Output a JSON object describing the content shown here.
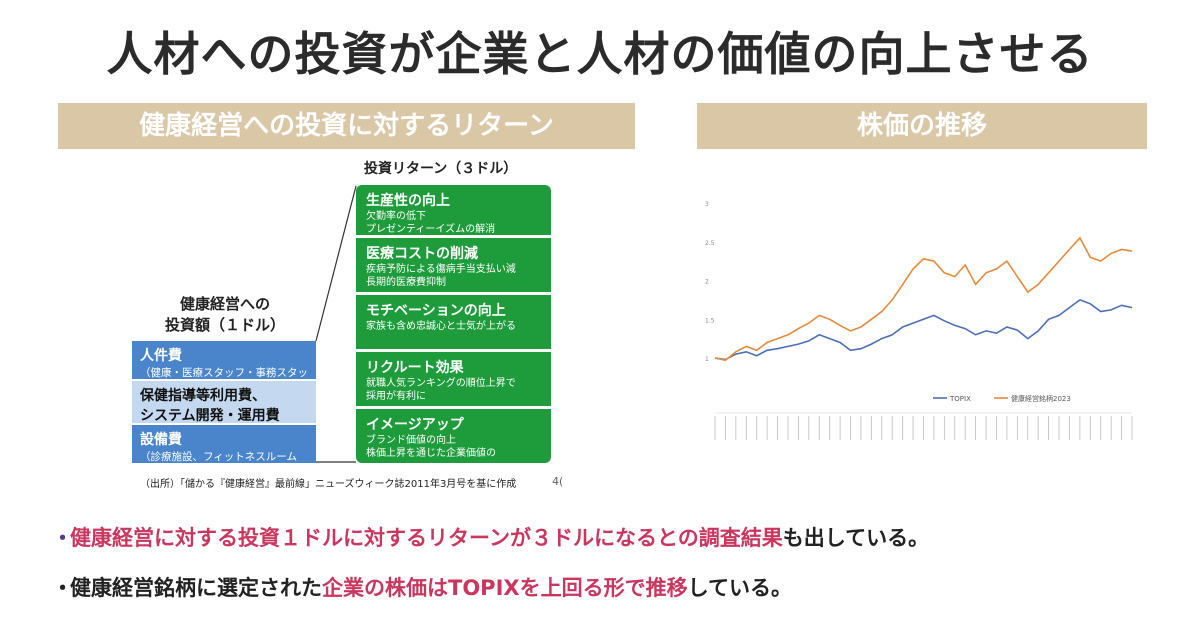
{
  "title": "人材への投資が企業と人材の価値の向上させる",
  "left_section": {
    "header": "健康経営への投資に対するリターン",
    "investment_label_line1": "健康経営への",
    "investment_label_line2": "投資額（１ドル）",
    "investments": [
      {
        "main": "人件費",
        "sub": "（健康・医療スタッフ・事務スタッフ）"
      },
      {
        "main": "保健指導等利用費、",
        "main2": "システム開発・運用費"
      },
      {
        "main": "設備費",
        "sub": "（診療施設、フィットネスルーム等）"
      }
    ],
    "return_title": "投資リターン（３ドル）",
    "returns": [
      {
        "heading": "生産性の向上",
        "desc1": "欠勤率の低下",
        "desc2": "プレゼンティーイズムの解消"
      },
      {
        "heading": "医療コストの削減",
        "desc1": "疾病予防による傷病手当支払い減",
        "desc2": "長期的医療費抑制"
      },
      {
        "heading": "モチベーションの向上",
        "desc1": "家族も含め忠誠心と士気が上がる",
        "desc2": ""
      },
      {
        "heading": "リクルート効果",
        "desc1": "就職人気ランキングの順位上昇で",
        "desc2": "採用が有利に"
      },
      {
        "heading": "イメージアップ",
        "desc1": "ブランド価値の向上",
        "desc2": "株価上昇を通じた企業価値の"
      }
    ],
    "source": "（出所）「儲かる『健康経営』最前線」ニューズウィーク誌2011年3月号を基に作成",
    "page_number": "4("
  },
  "right_section": {
    "header": "株価の推移"
  },
  "chart_data": {
    "type": "line",
    "title": "",
    "ylim": [
      1,
      3
    ],
    "yticks": [
      "3",
      "2.5",
      "2",
      "1.5",
      "1"
    ],
    "grid": false,
    "legend_position": "bottom",
    "x": [
      0,
      1,
      2,
      3,
      4,
      5,
      6,
      7,
      8,
      9,
      10,
      11,
      12,
      13,
      14,
      15,
      16,
      17,
      18,
      19,
      20,
      21,
      22,
      23,
      24,
      25,
      26,
      27,
      28,
      29,
      30,
      31,
      32,
      33,
      34,
      35,
      36,
      37,
      38,
      39,
      40
    ],
    "series": [
      {
        "name": "TOPIX",
        "color": "#4a6fb5",
        "values": [
          1.0,
          0.98,
          1.05,
          1.08,
          1.03,
          1.1,
          1.12,
          1.15,
          1.18,
          1.22,
          1.3,
          1.25,
          1.2,
          1.1,
          1.12,
          1.18,
          1.25,
          1.3,
          1.4,
          1.45,
          1.5,
          1.55,
          1.48,
          1.42,
          1.38,
          1.3,
          1.35,
          1.32,
          1.4,
          1.36,
          1.25,
          1.35,
          1.5,
          1.55,
          1.65,
          1.75,
          1.7,
          1.6,
          1.62,
          1.68,
          1.65
        ]
      },
      {
        "name": "健康経営銘柄2023",
        "color": "#e48a3a",
        "values": [
          1.0,
          0.97,
          1.08,
          1.15,
          1.1,
          1.2,
          1.25,
          1.3,
          1.38,
          1.45,
          1.55,
          1.5,
          1.42,
          1.35,
          1.4,
          1.5,
          1.6,
          1.75,
          1.95,
          2.15,
          2.28,
          2.25,
          2.1,
          2.05,
          2.2,
          1.95,
          2.1,
          2.15,
          2.25,
          2.05,
          1.85,
          1.95,
          2.1,
          2.25,
          2.4,
          2.55,
          2.3,
          2.25,
          2.35,
          2.4,
          2.38
        ]
      }
    ]
  },
  "bullets": [
    {
      "highlight": "健康経営に対する投資１ドルに対するリターンが３ドルになるとの調査結果",
      "rest": "も出している。"
    },
    {
      "pre": "健康経営銘柄に選定された",
      "highlight": "企業の株価はTOPIXを上回る形で推移",
      "rest": "している。"
    }
  ]
}
